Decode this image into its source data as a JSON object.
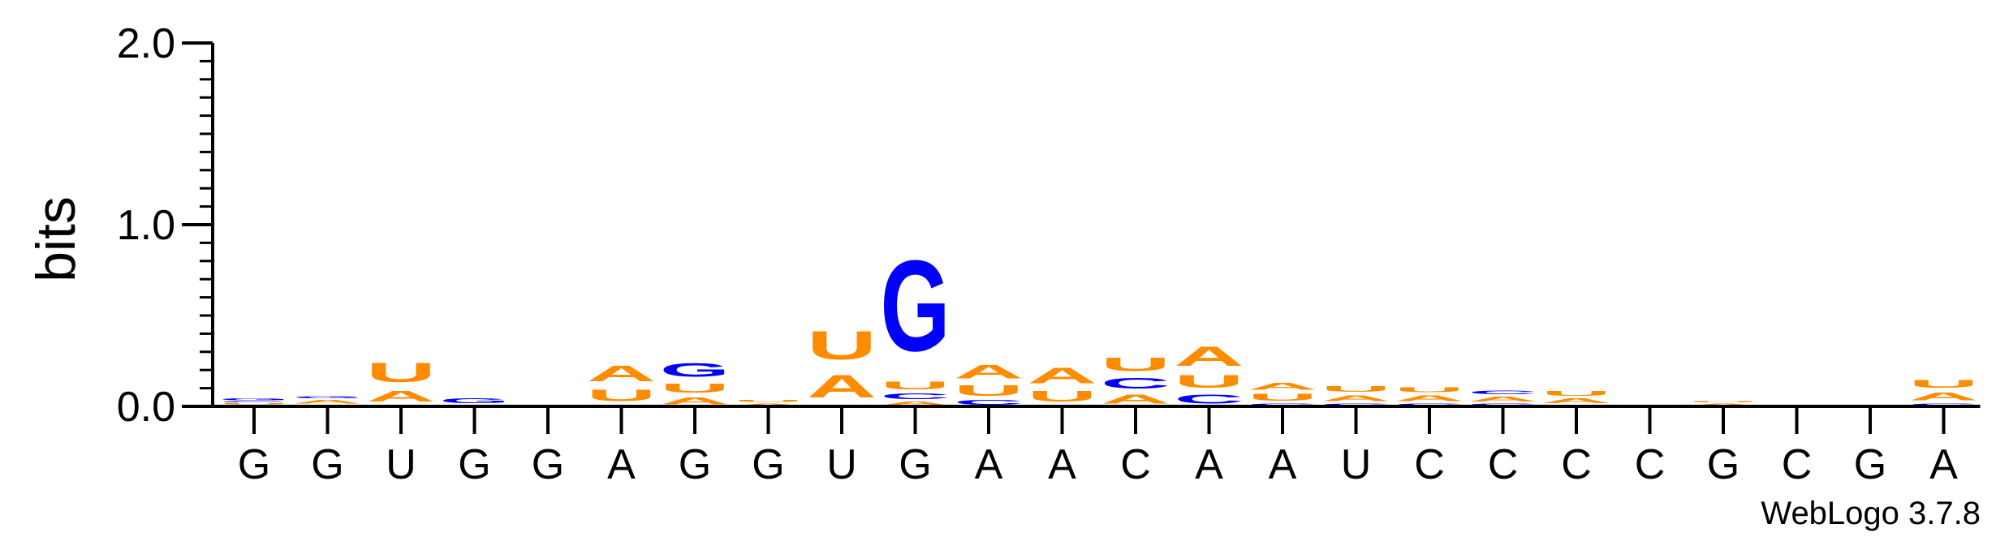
{
  "chart_data": {
    "type": "sequence-logo",
    "ylabel": "bits",
    "ylim": [
      0,
      2.0
    ],
    "yticks": [
      {
        "value": 0,
        "label": "0.0"
      },
      {
        "value": 1,
        "label": "1.0"
      },
      {
        "value": 2,
        "label": "2.0"
      }
    ],
    "positions": [
      "G",
      "G",
      "U",
      "G",
      "G",
      "A",
      "G",
      "G",
      "U",
      "G",
      "A",
      "A",
      "C",
      "A",
      "A",
      "U",
      "C",
      "C",
      "C",
      "C",
      "G",
      "C",
      "G",
      "A"
    ],
    "colors": {
      "A": "#ff8c00",
      "U": "#ff8c00",
      "G": "#0000ff",
      "C": "#0000ff"
    },
    "stacks": [
      [
        {
          "letter": "A",
          "bits": 0.01
        },
        {
          "letter": "U",
          "bits": 0.01
        },
        {
          "letter": "C",
          "bits": 0.01
        },
        {
          "letter": "G",
          "bits": 0.02
        }
      ],
      [
        {
          "letter": "U",
          "bits": 0.01
        },
        {
          "letter": "A",
          "bits": 0.03
        },
        {
          "letter": "G",
          "bits": 0.02
        }
      ],
      [
        {
          "letter": "C",
          "bits": 0.01
        },
        {
          "letter": "A",
          "bits": 0.09
        },
        {
          "letter": "U",
          "bits": 0.17
        }
      ],
      [
        {
          "letter": "A",
          "bits": 0.01
        },
        {
          "letter": "G",
          "bits": 0.04
        }
      ],
      [
        {
          "letter": "G",
          "bits": 0.01
        }
      ],
      [
        {
          "letter": "C",
          "bits": 0.01
        },
        {
          "letter": "U",
          "bits": 0.1
        },
        {
          "letter": "A",
          "bits": 0.14
        }
      ],
      [
        {
          "letter": "A",
          "bits": 0.06
        },
        {
          "letter": "U",
          "bits": 0.08
        },
        {
          "letter": "G",
          "bits": 0.12
        }
      ],
      [
        {
          "letter": "A",
          "bits": 0.02
        },
        {
          "letter": "U",
          "bits": 0.02
        }
      ],
      [
        {
          "letter": "C",
          "bits": 0.01
        },
        {
          "letter": "A",
          "bits": 0.2
        },
        {
          "letter": "U",
          "bits": 0.25
        }
      ],
      [
        {
          "letter": "A",
          "bits": 0.03
        },
        {
          "letter": "C",
          "bits": 0.05
        },
        {
          "letter": "U",
          "bits": 0.07
        },
        {
          "letter": "G",
          "bits": 0.8
        }
      ],
      [
        {
          "letter": "C",
          "bits": 0.04
        },
        {
          "letter": "U",
          "bits": 0.09
        },
        {
          "letter": "A",
          "bits": 0.12
        }
      ],
      [
        {
          "letter": "C",
          "bits": 0.01
        },
        {
          "letter": "U",
          "bits": 0.09
        },
        {
          "letter": "A",
          "bits": 0.14
        }
      ],
      [
        {
          "letter": "A",
          "bits": 0.08
        },
        {
          "letter": "C",
          "bits": 0.09
        },
        {
          "letter": "U",
          "bits": 0.12
        }
      ],
      [
        {
          "letter": "C",
          "bits": 0.08
        },
        {
          "letter": "U",
          "bits": 0.11
        },
        {
          "letter": "A",
          "bits": 0.17
        }
      ],
      [
        {
          "letter": "C",
          "bits": 0.02
        },
        {
          "letter": "U",
          "bits": 0.06
        },
        {
          "letter": "A",
          "bits": 0.06
        }
      ],
      [
        {
          "letter": "C",
          "bits": 0.02
        },
        {
          "letter": "A",
          "bits": 0.05
        },
        {
          "letter": "U",
          "bits": 0.05
        }
      ],
      [
        {
          "letter": "C",
          "bits": 0.02
        },
        {
          "letter": "A",
          "bits": 0.05
        },
        {
          "letter": "U",
          "bits": 0.04
        }
      ],
      [
        {
          "letter": "C",
          "bits": 0.02
        },
        {
          "letter": "A",
          "bits": 0.04
        },
        {
          "letter": "C",
          "bits": 0.03
        }
      ],
      [
        {
          "letter": "C",
          "bits": 0.01
        },
        {
          "letter": "A",
          "bits": 0.04
        },
        {
          "letter": "U",
          "bits": 0.04
        }
      ],
      [
        {
          "letter": "A",
          "bits": 0.01
        }
      ],
      [
        {
          "letter": "A",
          "bits": 0.02
        },
        {
          "letter": "U",
          "bits": 0.01
        }
      ],
      [],
      [],
      [
        {
          "letter": "C",
          "bits": 0.02
        },
        {
          "letter": "A",
          "bits": 0.07
        },
        {
          "letter": "U",
          "bits": 0.07
        }
      ]
    ]
  },
  "footer": {
    "version": "WebLogo 3.7.8"
  }
}
